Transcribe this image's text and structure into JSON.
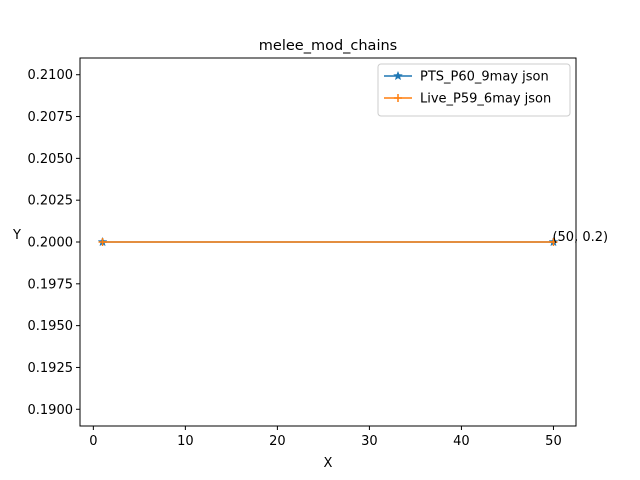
{
  "chart_data": {
    "type": "line",
    "title": "melee_mod_chains",
    "xlabel": "X",
    "ylabel": "Y",
    "xlim": [
      -1.45,
      52.45
    ],
    "ylim": [
      0.189,
      0.211
    ],
    "x_ticks": [
      0,
      10,
      20,
      30,
      40,
      50
    ],
    "x_tick_labels": [
      "0",
      "10",
      "20",
      "30",
      "40",
      "50"
    ],
    "y_ticks": [
      0.19,
      0.1925,
      0.195,
      0.1975,
      0.2,
      0.2025,
      0.205,
      0.2075,
      0.21
    ],
    "y_tick_labels": [
      "0.1900",
      "0.1925",
      "0.1950",
      "0.1975",
      "0.2000",
      "0.2025",
      "0.2050",
      "0.2075",
      "0.2100"
    ],
    "grid": false,
    "legend_position": "top-right",
    "series": [
      {
        "name": "PTS_P60_9may json",
        "color": "#1f77b4",
        "marker": "star",
        "x": [
          1,
          50
        ],
        "y": [
          0.2,
          0.2
        ]
      },
      {
        "name": "Live_P59_6may json",
        "color": "#ff7f0e",
        "marker": "plus",
        "x": [
          1,
          50
        ],
        "y": [
          0.2,
          0.2
        ]
      }
    ],
    "annotations": [
      {
        "text": "(50, 0.2)",
        "x": 50,
        "y": 0.2
      }
    ]
  }
}
